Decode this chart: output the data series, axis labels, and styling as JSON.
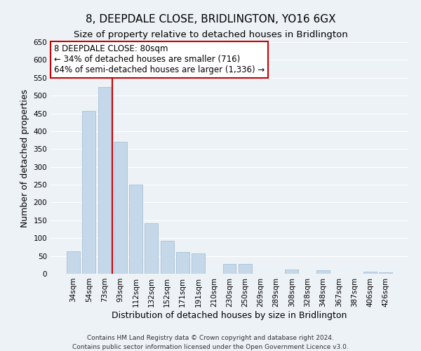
{
  "title": "8, DEEPDALE CLOSE, BRIDLINGTON, YO16 6GX",
  "subtitle": "Size of property relative to detached houses in Bridlington",
  "xlabel": "Distribution of detached houses by size in Bridlington",
  "ylabel": "Number of detached properties",
  "bar_labels": [
    "34sqm",
    "54sqm",
    "73sqm",
    "93sqm",
    "112sqm",
    "132sqm",
    "152sqm",
    "171sqm",
    "191sqm",
    "210sqm",
    "230sqm",
    "250sqm",
    "269sqm",
    "289sqm",
    "308sqm",
    "328sqm",
    "348sqm",
    "367sqm",
    "387sqm",
    "406sqm",
    "426sqm"
  ],
  "bar_values": [
    63,
    457,
    524,
    370,
    250,
    142,
    93,
    62,
    57,
    0,
    27,
    28,
    0,
    0,
    12,
    0,
    10,
    0,
    0,
    5,
    3
  ],
  "bar_color": "#c5d8ea",
  "bar_edge_color": "#a8c0d6",
  "vline_x_index": 2,
  "vline_color": "#cc0000",
  "ylim": [
    0,
    650
  ],
  "yticks": [
    0,
    50,
    100,
    150,
    200,
    250,
    300,
    350,
    400,
    450,
    500,
    550,
    600,
    650
  ],
  "annotation_line1": "8 DEEPDALE CLOSE: 80sqm",
  "annotation_line2": "← 34% of detached houses are smaller (716)",
  "annotation_line3": "64% of semi-detached houses are larger (1,336) →",
  "annotation_box_color": "#ffffff",
  "annotation_box_edge": "#cc0000",
  "footer_line1": "Contains HM Land Registry data © Crown copyright and database right 2024.",
  "footer_line2": "Contains public sector information licensed under the Open Government Licence v3.0.",
  "background_color": "#edf2f7",
  "grid_color": "#ffffff",
  "title_fontsize": 11,
  "subtitle_fontsize": 9.5,
  "tick_fontsize": 7.5,
  "label_fontsize": 9,
  "annotation_fontsize": 8.5,
  "footer_fontsize": 6.5
}
